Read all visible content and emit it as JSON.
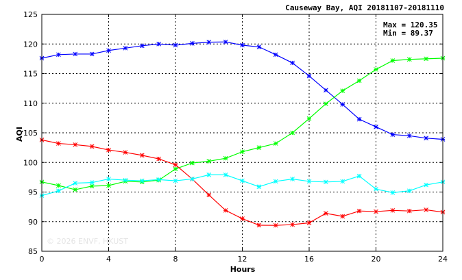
{
  "chart_data": {
    "type": "line",
    "title": "Causeway Bay, AQI 20181107-20181110",
    "xlabel": "Hours",
    "ylabel": "AQI",
    "xlim": [
      0,
      24
    ],
    "ylim": [
      85,
      125
    ],
    "xticks": [
      0,
      4,
      8,
      12,
      16,
      20,
      24
    ],
    "yticks": [
      85,
      90,
      95,
      100,
      105,
      110,
      115,
      120,
      125
    ],
    "grid": true,
    "annotations": {
      "max_label": "Max = 120.35",
      "min_label": "Min =  89.37"
    },
    "watermark": "© 2026 ENVF, HKUST",
    "x": [
      0,
      1,
      2,
      3,
      4,
      5,
      6,
      7,
      8,
      9,
      10,
      11,
      12,
      13,
      14,
      15,
      16,
      17,
      18,
      19,
      20,
      21,
      22,
      23,
      24
    ],
    "series": [
      {
        "color": "#0000ff",
        "values": [
          117.6,
          118.2,
          118.3,
          118.3,
          118.9,
          119.3,
          119.7,
          120.0,
          119.8,
          120.1,
          120.3,
          120.35,
          119.8,
          119.5,
          118.2,
          116.8,
          114.6,
          112.2,
          109.8,
          107.3,
          106.0,
          104.7,
          104.5,
          104.1,
          103.9
        ]
      },
      {
        "color": "#00ff00",
        "values": [
          96.7,
          96.1,
          95.4,
          96.0,
          96.1,
          96.8,
          96.7,
          97.0,
          98.9,
          99.9,
          100.2,
          100.7,
          101.8,
          102.5,
          103.2,
          105.0,
          107.4,
          109.9,
          112.1,
          113.8,
          115.7,
          117.2,
          117.4,
          117.5,
          117.6
        ]
      },
      {
        "color": "#ff0000",
        "values": [
          103.8,
          103.2,
          103.0,
          102.7,
          102.1,
          101.7,
          101.2,
          100.6,
          99.6,
          97.2,
          94.5,
          91.9,
          90.5,
          89.4,
          89.37,
          89.5,
          89.8,
          91.4,
          90.9,
          91.8,
          91.7,
          91.9,
          91.8,
          92.0,
          91.6
        ]
      },
      {
        "color": "#00ffff",
        "values": [
          94.4,
          95.2,
          96.5,
          96.6,
          97.2,
          97.0,
          96.9,
          97.1,
          96.9,
          97.2,
          97.9,
          97.9,
          96.9,
          95.9,
          96.8,
          97.2,
          96.8,
          96.7,
          96.8,
          97.7,
          95.5,
          94.9,
          95.2,
          96.2,
          96.7
        ]
      }
    ]
  }
}
